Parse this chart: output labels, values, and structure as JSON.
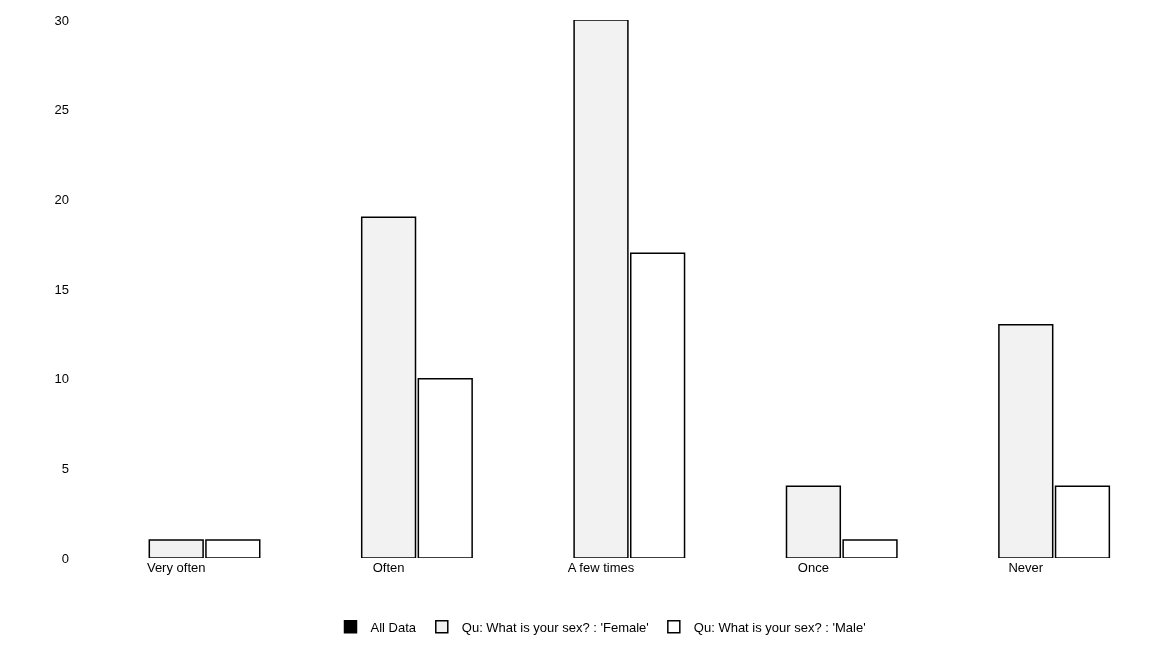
{
  "chart_data": {
    "type": "bar",
    "categories": [
      "Very often",
      "Often",
      "A few times",
      "Once",
      "Never"
    ],
    "series": [
      {
        "name": "All Data",
        "color": "#000000",
        "values": [
          null,
          null,
          null,
          null,
          null
        ]
      },
      {
        "name": "Qu: What is your sex? : 'Female'",
        "color": "#f2f2f2",
        "values": [
          1,
          19,
          30,
          4,
          13
        ]
      },
      {
        "name": "Qu: What is your sex? : 'Male'",
        "color": "#ffffff",
        "values": [
          1,
          10,
          17,
          1,
          4
        ]
      }
    ],
    "ylim": [
      0,
      30
    ],
    "yticks": [
      0,
      5,
      10,
      15,
      20,
      25,
      30
    ],
    "legend": "bottom"
  }
}
